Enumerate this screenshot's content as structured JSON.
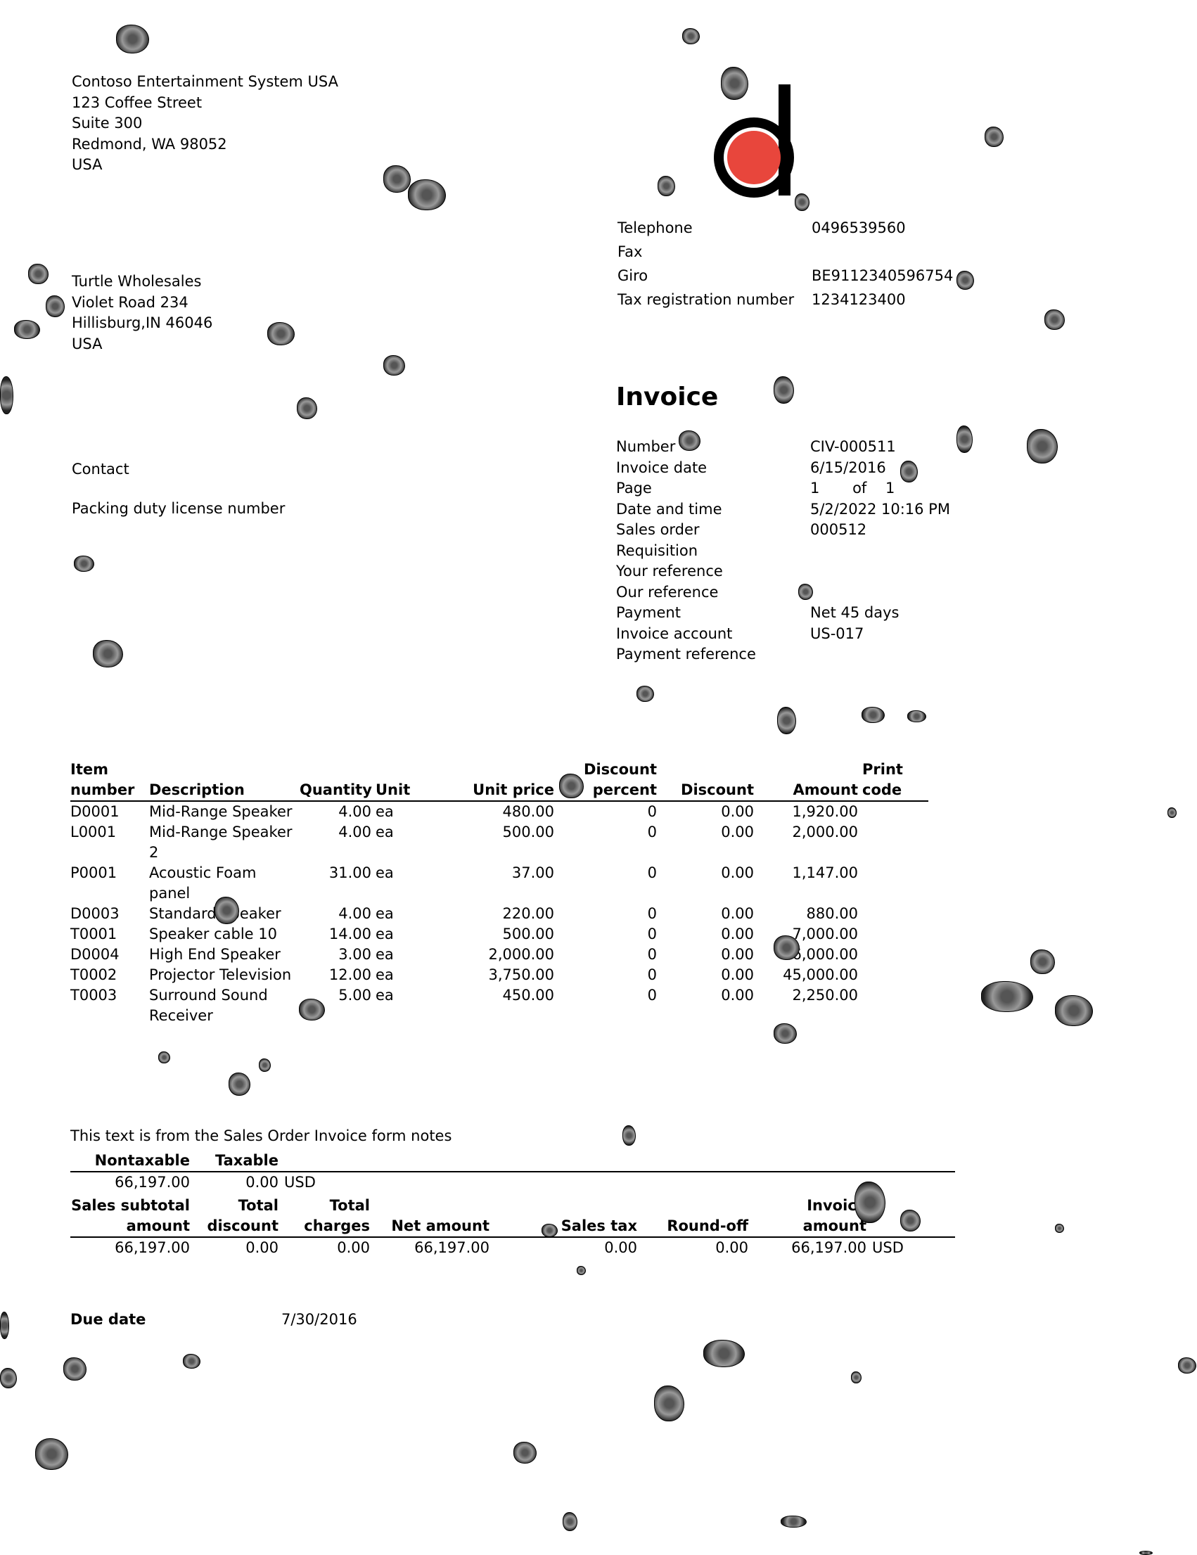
{
  "company": {
    "name": "Contoso Entertainment System USA",
    "address": [
      "123 Coffee Street",
      "Suite 300",
      "Redmond, WA 98052",
      "USA"
    ]
  },
  "customer": {
    "name": "Turtle Wholesales",
    "address": [
      "Violet Road 234",
      "Hillisburg,IN 46046",
      "USA"
    ]
  },
  "left_labels": {
    "contact": "Contact",
    "packing_duty": "Packing duty license number"
  },
  "company_contact": [
    {
      "label": "Telephone",
      "value": "0496539560"
    },
    {
      "label": "Fax",
      "value": ""
    },
    {
      "label": "Giro",
      "value": "BE9112340596754"
    },
    {
      "label": "Tax registration number",
      "value": "1234123400"
    }
  ],
  "invoice": {
    "title": "Invoice",
    "fields": [
      {
        "label": "Number",
        "value": "CIV-000511"
      },
      {
        "label": "Invoice date",
        "value": "6/15/2016"
      },
      {
        "label": "Page",
        "value": "1       of    1"
      },
      {
        "label": "Date and time",
        "value": "5/2/2022 10:16 PM"
      },
      {
        "label": "Sales order",
        "value": "000512"
      },
      {
        "label": "Requisition",
        "value": ""
      },
      {
        "label": "Your reference",
        "value": ""
      },
      {
        "label": "Our reference",
        "value": ""
      },
      {
        "label": "Payment",
        "value": "Net 45 days"
      },
      {
        "label": "Invoice account",
        "value": "US-017"
      },
      {
        "label": "Payment reference",
        "value": ""
      }
    ]
  },
  "lines_table": {
    "headers": {
      "item_number": [
        "Item",
        "number"
      ],
      "description": "Description",
      "quantity": "Quantity",
      "unit": "Unit",
      "unit_price": "Unit price",
      "discount_percent": [
        "Discount",
        "percent"
      ],
      "discount": "Discount",
      "amount": "Amount",
      "print_code": [
        "Print",
        "code"
      ]
    },
    "rows": [
      {
        "item": "D0001",
        "desc": [
          "Mid-Range Speaker"
        ],
        "qty": "4.00",
        "unit": "ea",
        "price": "480.00",
        "discpct": "0",
        "disc": "0.00",
        "amount": "1,920.00"
      },
      {
        "item": "L0001",
        "desc": [
          "Mid-Range Speaker",
          "2"
        ],
        "qty": "4.00",
        "unit": "ea",
        "price": "500.00",
        "discpct": "0",
        "disc": "0.00",
        "amount": "2,000.00"
      },
      {
        "item": "P0001",
        "desc": [
          "Acoustic Foam",
          "panel"
        ],
        "qty": "31.00",
        "unit": "ea",
        "price": "37.00",
        "discpct": "0",
        "disc": "0.00",
        "amount": "1,147.00"
      },
      {
        "item": "D0003",
        "desc": [
          "Standard Speaker"
        ],
        "qty": "4.00",
        "unit": "ea",
        "price": "220.00",
        "discpct": "0",
        "disc": "0.00",
        "amount": "880.00"
      },
      {
        "item": "T0001",
        "desc": [
          "Speaker cable 10"
        ],
        "qty": "14.00",
        "unit": "ea",
        "price": "500.00",
        "discpct": "0",
        "disc": "0.00",
        "amount": "7,000.00"
      },
      {
        "item": "D0004",
        "desc": [
          "High End Speaker"
        ],
        "qty": "3.00",
        "unit": "ea",
        "price": "2,000.00",
        "discpct": "0",
        "disc": "0.00",
        "amount": "6,000.00"
      },
      {
        "item": "T0002",
        "desc": [
          "Projector Television"
        ],
        "qty": "12.00",
        "unit": "ea",
        "price": "3,750.00",
        "discpct": "0",
        "disc": "0.00",
        "amount": "45,000.00"
      },
      {
        "item": "T0003",
        "desc": [
          "Surround Sound",
          "Receiver"
        ],
        "qty": "5.00",
        "unit": "ea",
        "price": "450.00",
        "discpct": "0",
        "disc": "0.00",
        "amount": "2,250.00"
      }
    ]
  },
  "notes": "This text is from the Sales Order Invoice form notes",
  "tax_table": {
    "headers": {
      "nontaxable": "Nontaxable",
      "taxable": "Taxable"
    },
    "values": {
      "nontaxable": "66,197.00",
      "taxable": "0.00",
      "currency": "USD"
    }
  },
  "totals_table": {
    "headers": {
      "subtotal": [
        "Sales subtotal",
        "amount"
      ],
      "total_discount": [
        "Total",
        "discount"
      ],
      "total_charges": [
        "Total",
        "charges"
      ],
      "net_amount": "Net amount",
      "sales_tax": "Sales tax",
      "round_off": "Round-off",
      "invoice_amount": "Invoice amount"
    },
    "values": {
      "subtotal": "66,197.00",
      "total_discount": "0.00",
      "total_charges": "0.00",
      "net_amount": "66,197.00",
      "sales_tax": "0.00",
      "round_off": "0.00",
      "invoice_amount": "66,197.00",
      "currency": "USD"
    }
  },
  "due": {
    "label": "Due date",
    "value": "7/30/2016"
  },
  "colors": {
    "logo_dot": "#e8463c",
    "logo_ring": "#000000"
  }
}
